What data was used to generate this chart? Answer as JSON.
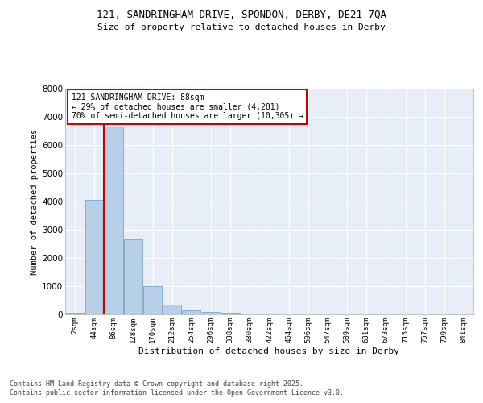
{
  "title1": "121, SANDRINGHAM DRIVE, SPONDON, DERBY, DE21 7QA",
  "title2": "Size of property relative to detached houses in Derby",
  "xlabel": "Distribution of detached houses by size in Derby",
  "ylabel": "Number of detached properties",
  "bin_labels": [
    "2sqm",
    "44sqm",
    "86sqm",
    "128sqm",
    "170sqm",
    "212sqm",
    "254sqm",
    "296sqm",
    "338sqm",
    "380sqm",
    "422sqm",
    "464sqm",
    "506sqm",
    "547sqm",
    "589sqm",
    "631sqm",
    "673sqm",
    "715sqm",
    "757sqm",
    "799sqm",
    "841sqm"
  ],
  "bar_values": [
    70,
    4050,
    6650,
    2650,
    1000,
    350,
    130,
    100,
    60,
    40,
    0,
    0,
    0,
    0,
    0,
    0,
    0,
    0,
    0,
    0,
    0
  ],
  "bar_color": "#b8cfe8",
  "bar_edge_color": "#6699cc",
  "vline_x": 2,
  "vline_color": "#cc0000",
  "vline_label_title": "121 SANDRINGHAM DRIVE: 88sqm",
  "vline_label_line2": "← 29% of detached houses are smaller (4,281)",
  "vline_label_line3": "70% of semi-detached houses are larger (10,305) →",
  "annotation_box_color": "#cc0000",
  "ylim": [
    0,
    8000
  ],
  "yticks": [
    0,
    1000,
    2000,
    3000,
    4000,
    5000,
    6000,
    7000,
    8000
  ],
  "bg_color": "#e8eef8",
  "grid_color": "#ffffff",
  "footer1": "Contains HM Land Registry data © Crown copyright and database right 2025.",
  "footer2": "Contains public sector information licensed under the Open Government Licence v3.0."
}
